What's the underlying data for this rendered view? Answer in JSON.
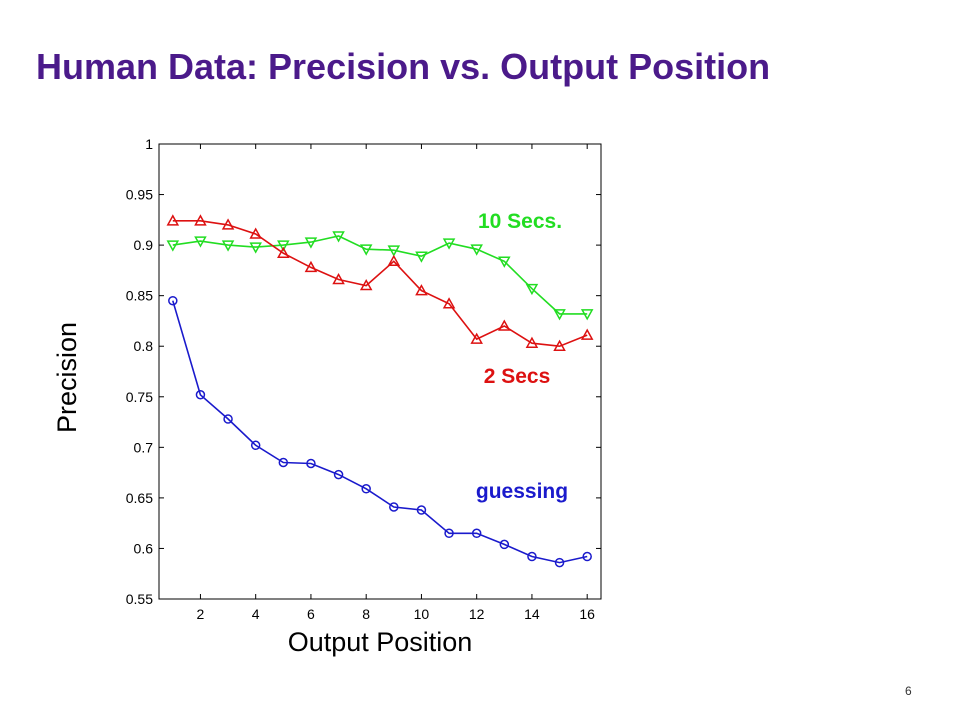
{
  "slide": {
    "title": "Human Data:  Precision vs. Output Position",
    "page_number": "6"
  },
  "chart_data": {
    "type": "line",
    "title": "",
    "xlabel": "Output Position",
    "ylabel": "Precision",
    "xlim": [
      0.5,
      16.5
    ],
    "ylim": [
      0.55,
      1.0
    ],
    "x_ticks": [
      2,
      4,
      6,
      8,
      10,
      12,
      14,
      16
    ],
    "y_ticks": [
      0.55,
      0.6,
      0.65,
      0.7,
      0.75,
      0.8,
      0.85,
      0.9,
      0.95,
      1
    ],
    "y_tick_labels": [
      "0.55",
      "0.6",
      "0.65",
      "0.7",
      "0.75",
      "0.8",
      "0.85",
      "0.9",
      "0.95",
      "1"
    ],
    "grid": false,
    "x": [
      1,
      2,
      3,
      4,
      5,
      6,
      7,
      8,
      9,
      10,
      11,
      12,
      13,
      14,
      15,
      16
    ],
    "series": [
      {
        "name": "10 Secs.",
        "color": "#22dd22",
        "marker": "triangle-down",
        "values": [
          0.9,
          0.904,
          0.9,
          0.898,
          0.9,
          0.903,
          0.909,
          0.896,
          0.895,
          0.889,
          0.902,
          0.896,
          0.884,
          0.857,
          0.832,
          0.832
        ]
      },
      {
        "name": "2 Secs",
        "color": "#dd1111",
        "marker": "triangle-up",
        "values": [
          0.924,
          0.924,
          0.92,
          0.911,
          0.892,
          0.878,
          0.866,
          0.86,
          0.884,
          0.855,
          0.842,
          0.807,
          0.82,
          0.803,
          0.8,
          0.811
        ]
      },
      {
        "name": "guessing",
        "color": "#1a1acc",
        "marker": "circle",
        "values": [
          0.845,
          0.752,
          0.728,
          0.702,
          0.685,
          0.684,
          0.673,
          0.659,
          0.641,
          0.638,
          0.615,
          0.615,
          0.604,
          0.592,
          0.586,
          0.592
        ]
      }
    ]
  }
}
